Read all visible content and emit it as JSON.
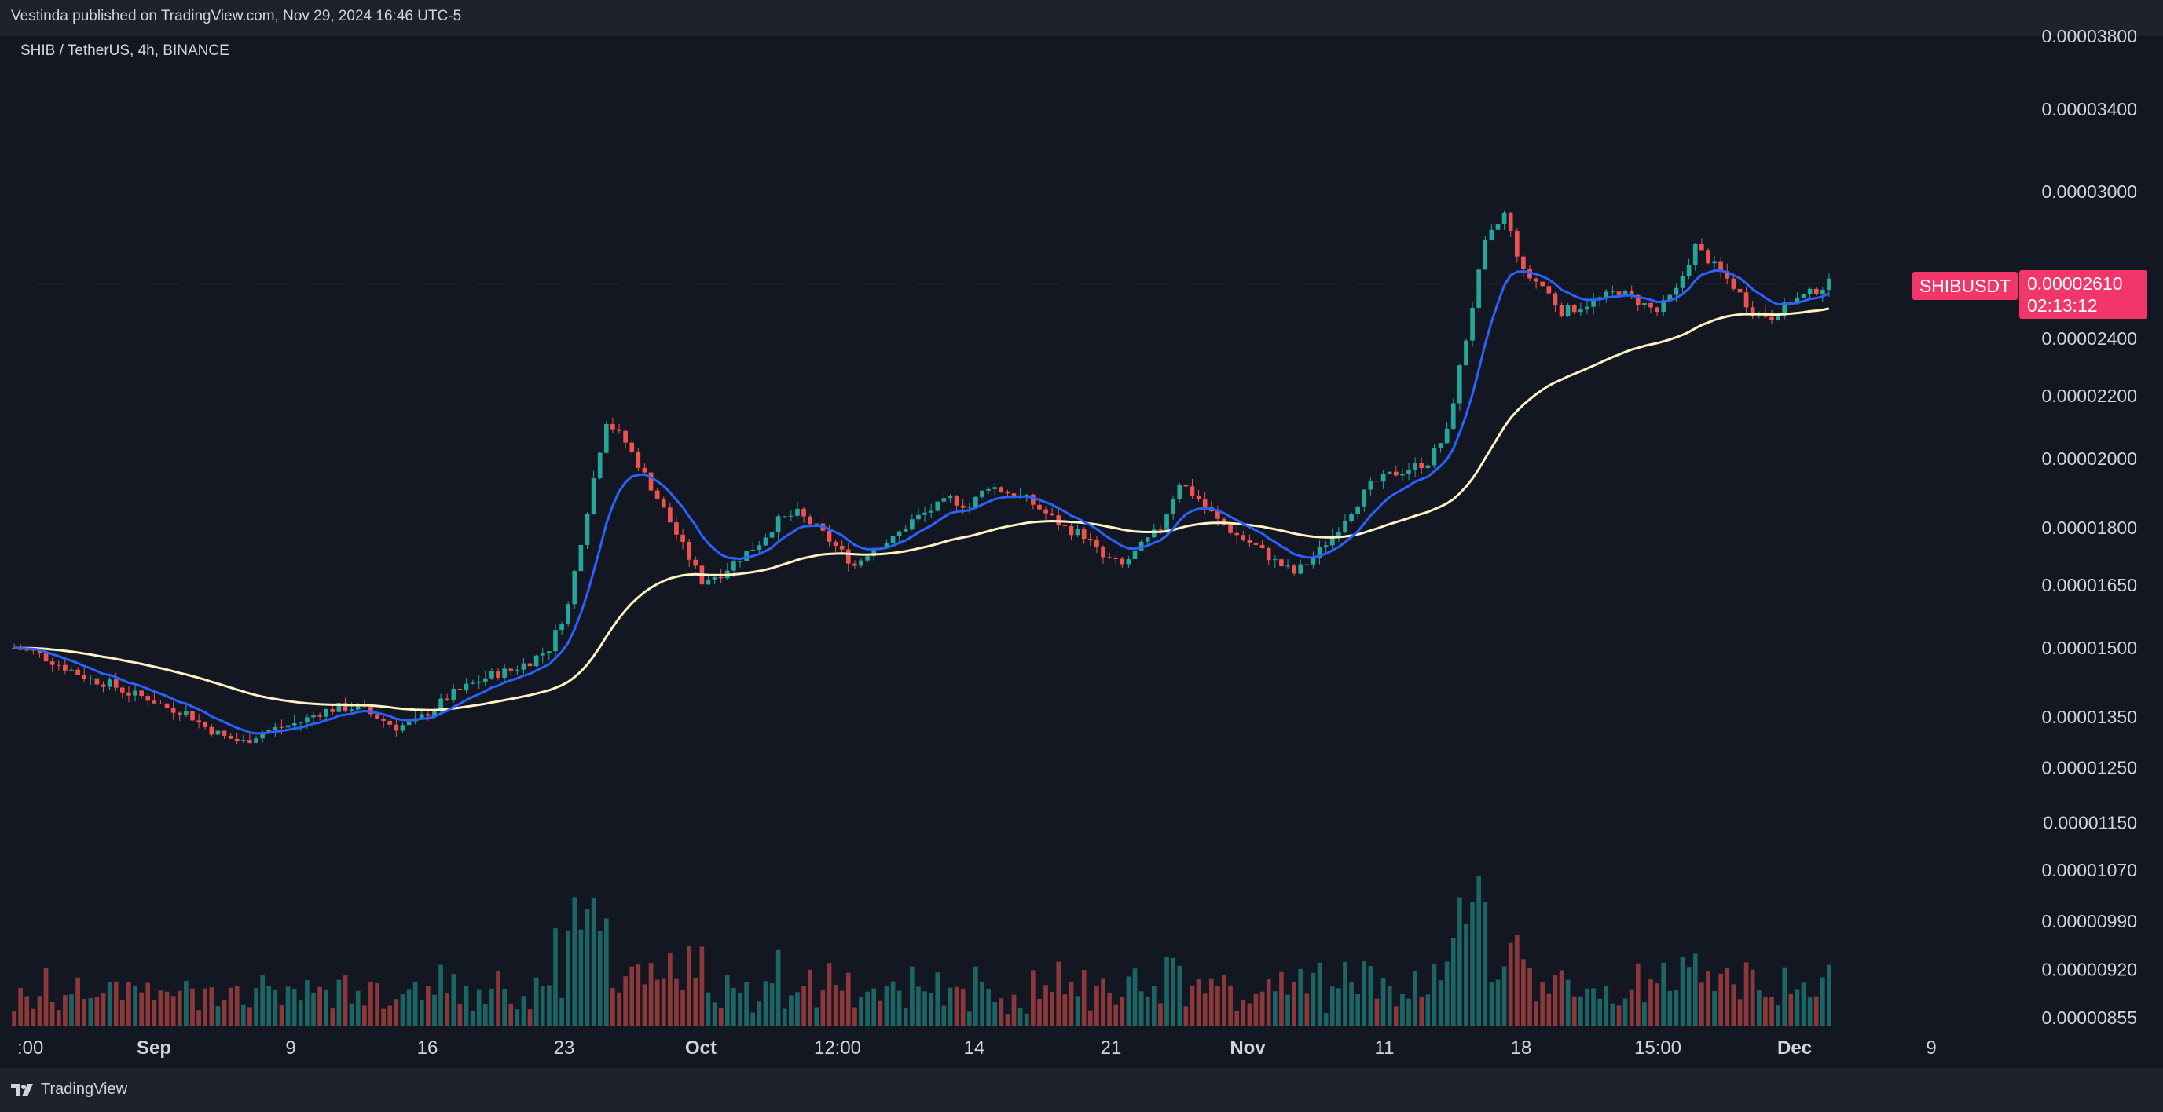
{
  "header": {
    "published_by": "Vestinda published on TradingView.com, Nov 29, 2024 16:46 UTC-5",
    "symbol_legend": "SHIB / TetherUS, 4h, BINANCE"
  },
  "price_label": {
    "ticker": "SHIBUSDT",
    "price": "0.00002610",
    "countdown": "02:13:12"
  },
  "footer": {
    "brand": "TradingView"
  },
  "colors": {
    "background": "#131722",
    "up_candle": "#26a69a",
    "down_candle": "#ef5350",
    "ema_fast": "#2962ff",
    "ema_slow": "#fff3c4",
    "price_tag": "#f23669",
    "axis_text": "#d1d4dc"
  },
  "icons": {
    "logo": "tradingview-logo-icon"
  },
  "chart_data": {
    "type": "candlestick",
    "timeframe": "4h",
    "y_scale": "log",
    "y_ticks": [
      "0.00003800",
      "0.00003400",
      "0.00003000",
      "0.00002400",
      "0.00002200",
      "0.00002000",
      "0.00001800",
      "0.00001650",
      "0.00001500",
      "0.00001350",
      "0.00001250",
      "0.00001150",
      "0.00001070",
      "0.00000990",
      "0.00000920",
      "0.00000855"
    ],
    "x_ticks": [
      ":00",
      "Sep",
      "9",
      "16",
      "23",
      "Oct",
      "12:00",
      "14",
      "21",
      "Nov",
      "11",
      "18",
      "15:00",
      "Dec",
      "9"
    ],
    "last_price": 2.61e-05,
    "close_series_approx": [
      [
        1.5e-05,
        1.49e-05,
        1.47e-05,
        1.45e-05,
        1.43e-05,
        1.42e-05,
        1.4e-05,
        1.39e-05,
        1.37e-05,
        1.36e-05,
        1.33e-05,
        1.31e-05,
        1.3e-05,
        1.32e-05,
        1.33e-05,
        1.34e-05,
        1.36e-05,
        1.37e-05,
        1.37e-05,
        1.35e-05,
        1.33e-05,
        1.34e-05,
        1.37e-05
      ],
      [
        1.4e-05,
        1.42e-05,
        1.44e-05,
        1.45e-05,
        1.47e-05,
        1.5e-05,
        1.6e-05,
        1.85e-05,
        2.12e-05,
        2.05e-05,
        1.95e-05,
        1.85e-05,
        1.75e-05,
        1.66e-05,
        1.68e-05,
        1.72e-05,
        1.76e-05,
        1.82e-05,
        1.84e-05,
        1.8e-05,
        1.75e-05,
        1.7e-05,
        1.75e-05,
        1.77e-05
      ],
      [
        1.82e-05,
        1.85e-05,
        1.88e-05,
        1.86e-05,
        1.92e-05,
        1.9e-05,
        1.88e-05,
        1.84e-05,
        1.8e-05,
        1.78e-05,
        1.72e-05,
        1.7e-05,
        1.75e-05,
        1.8e-05,
        1.93e-05,
        1.88e-05,
        1.82e-05,
        1.78e-05,
        1.75e-05,
        1.71e-05,
        1.68e-05
      ],
      [
        1.72e-05,
        1.78e-05,
        1.85e-05,
        1.92e-05,
        1.95e-05,
        1.97e-05,
        1.99e-05,
        2.08e-05,
        2.4e-05,
        2.77e-05,
        2.9e-05,
        2.65e-05,
        2.6e-05,
        2.5e-05,
        2.52e-05,
        2.55e-05,
        2.58e-05,
        2.54e-05,
        2.5e-05,
        2.58e-05,
        2.76e-05,
        2.68e-05,
        2.6e-05,
        2.5e-05,
        2.48e-05,
        2.54e-05,
        2.57e-05,
        2.61e-05
      ]
    ],
    "series": [
      {
        "name": "",
        "kind": "ema_fast"
      },
      {
        "name": "",
        "kind": "ema_slow"
      }
    ],
    "volume_panel": true
  }
}
